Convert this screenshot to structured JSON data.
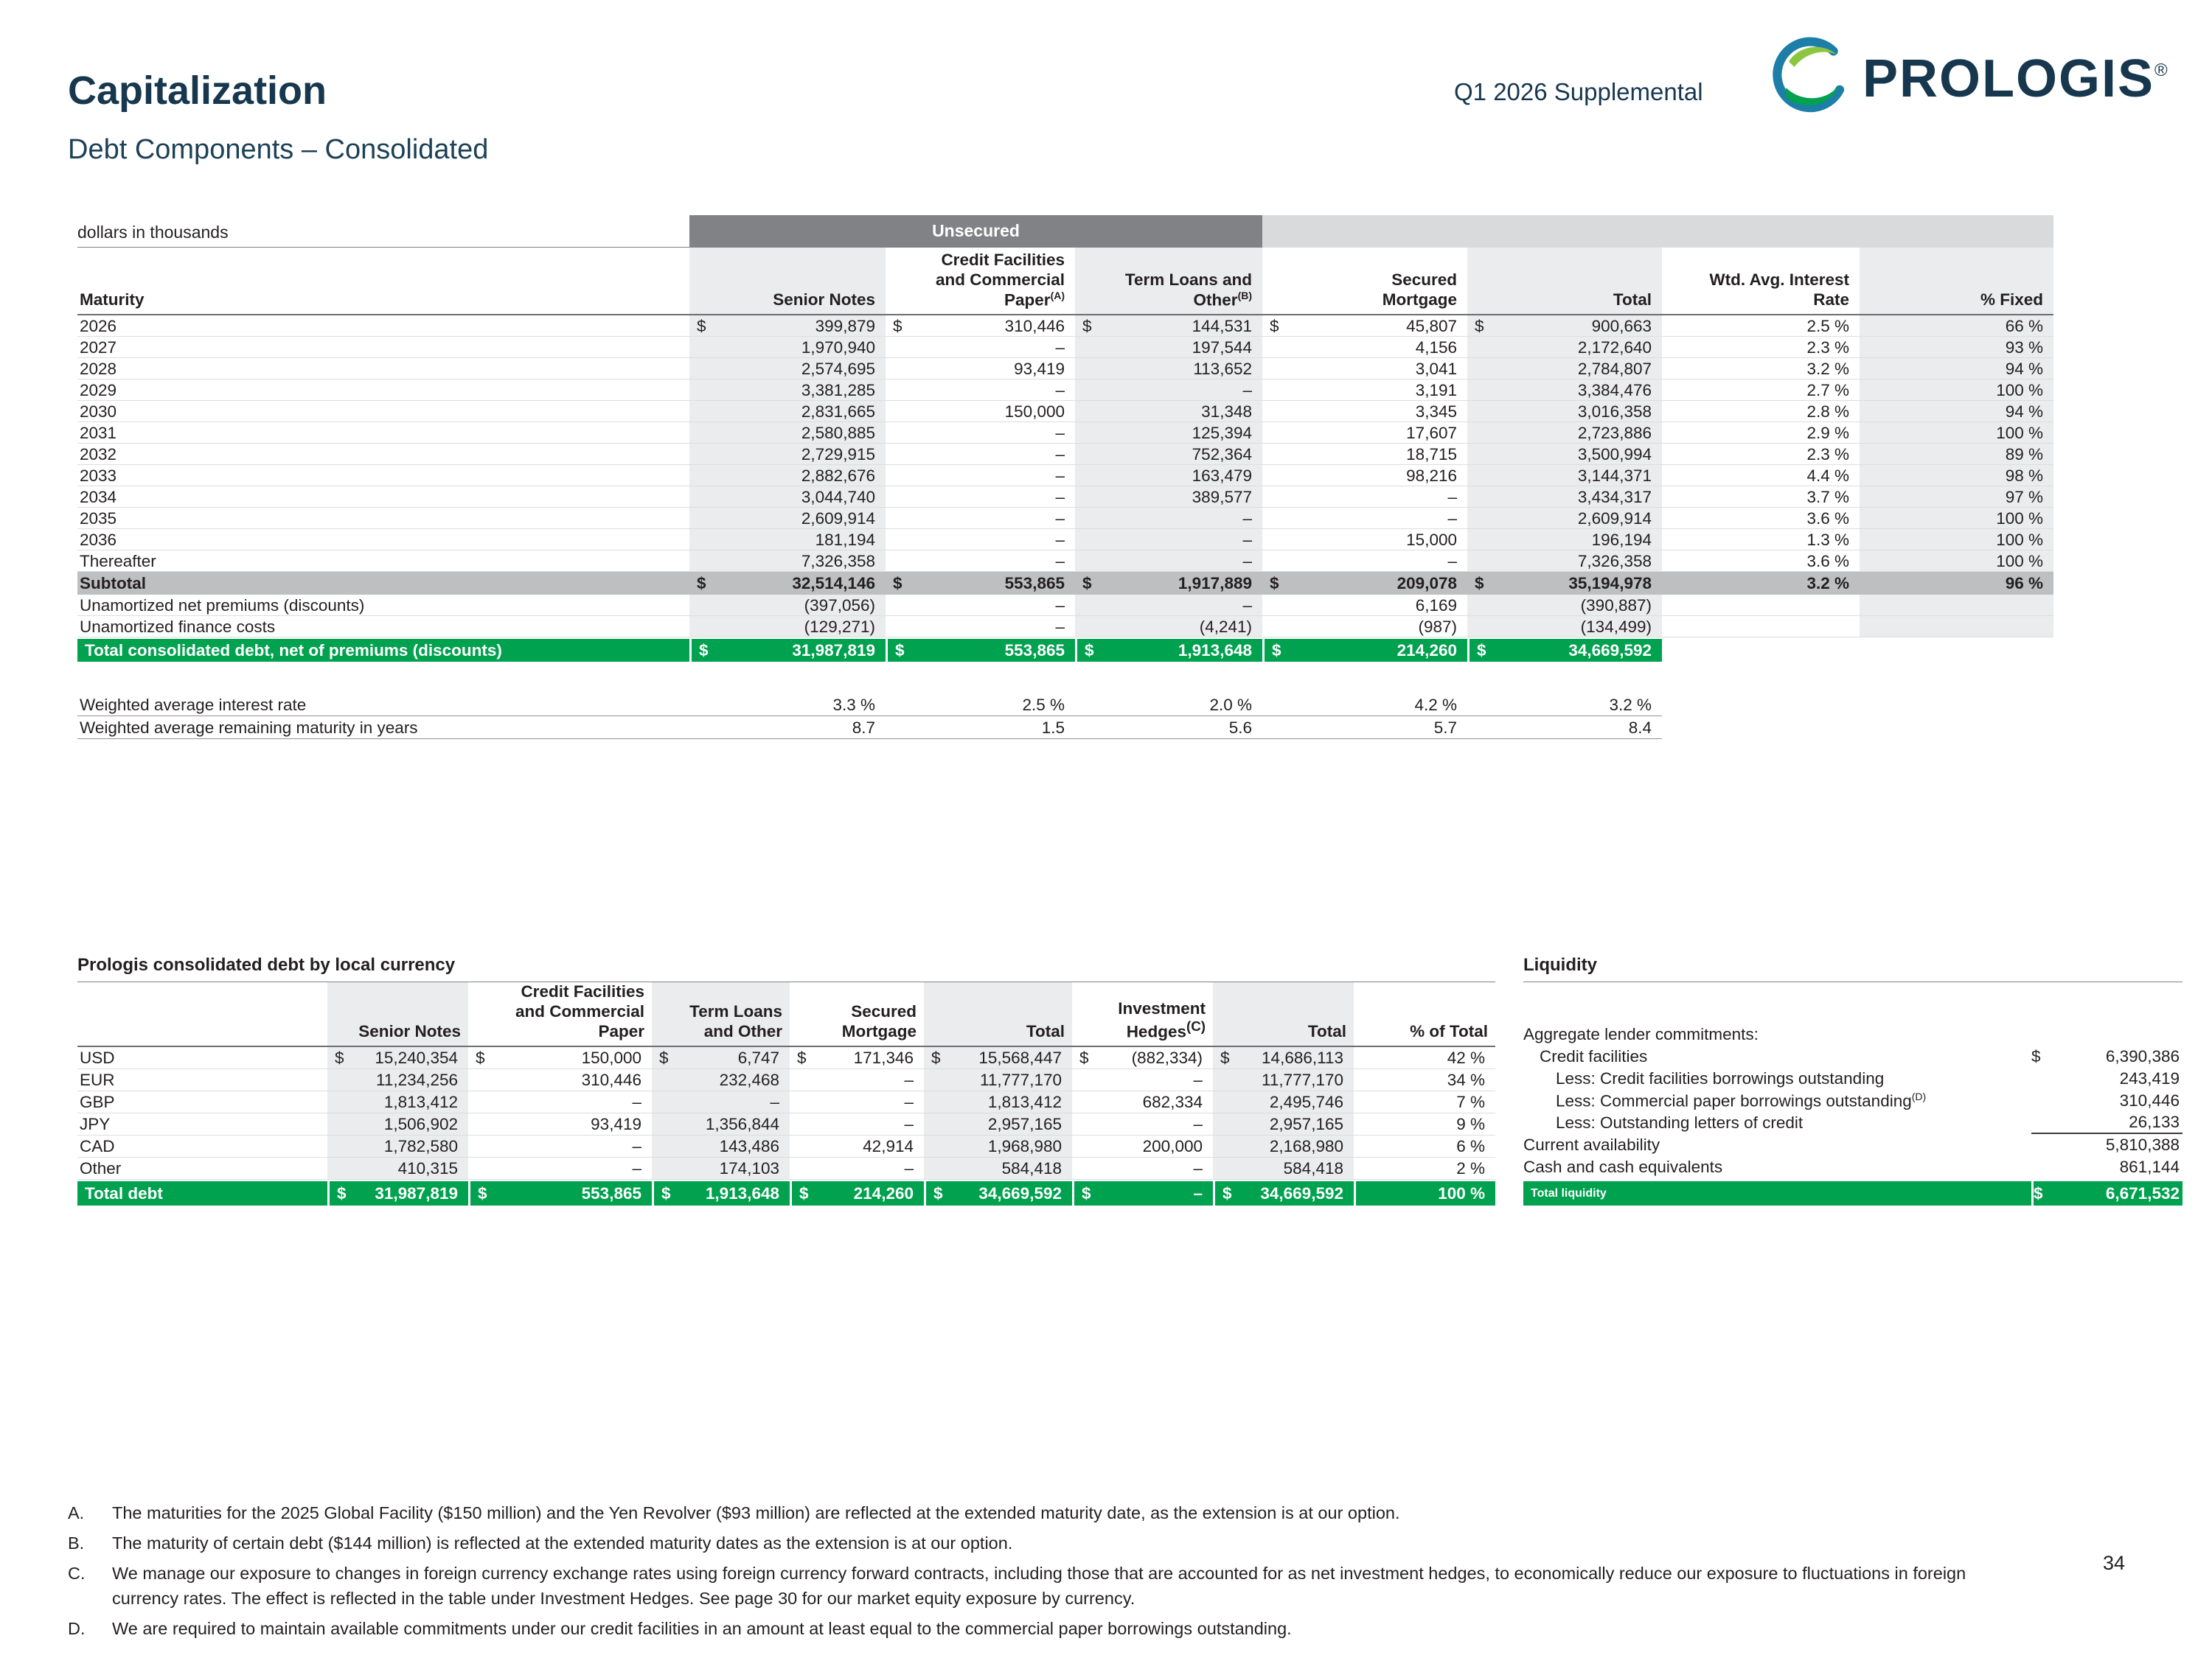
{
  "page": {
    "title": "Capitalization",
    "subtitle": "Debt Components – Consolidated",
    "supplemental_label": "Q1 2026 Supplemental",
    "page_number": "34",
    "brand": {
      "wordmark": "PROLOGIS",
      "registered": "®"
    },
    "colors": {
      "green": "#00a14f",
      "navy": "#17374e",
      "bar_gray": "#808285",
      "subtotal_gray": "#bdbfc1"
    }
  },
  "main_table": {
    "units_label": "dollars in thousands",
    "group_header": "Unsecured",
    "row_header": "Maturity",
    "columns": [
      "Senior Notes",
      "Credit Facilities<br>and Commercial<br>Paper<sup>(A)</sup>",
      "Term Loans and<br>Other<sup>(B)</sup>",
      "Secured<br>Mortgage",
      "Total",
      "Wtd. Avg. Interest<br>Rate",
      "% Fixed"
    ],
    "rows": [
      {
        "label": "2026",
        "cells": [
          "$|399,879",
          "$|310,446",
          "$|144,531",
          "$|45,807",
          "$|900,663",
          "2.5 %",
          "66 %"
        ]
      },
      {
        "label": "2027",
        "cells": [
          "1,970,940",
          "–",
          "197,544",
          "4,156",
          "2,172,640",
          "2.3 %",
          "93 %"
        ]
      },
      {
        "label": "2028",
        "cells": [
          "2,574,695",
          "93,419",
          "113,652",
          "3,041",
          "2,784,807",
          "3.2 %",
          "94 %"
        ]
      },
      {
        "label": "2029",
        "cells": [
          "3,381,285",
          "–",
          "–",
          "3,191",
          "3,384,476",
          "2.7 %",
          "100 %"
        ]
      },
      {
        "label": "2030",
        "cells": [
          "2,831,665",
          "150,000",
          "31,348",
          "3,345",
          "3,016,358",
          "2.8 %",
          "94 %"
        ]
      },
      {
        "label": "2031",
        "cells": [
          "2,580,885",
          "–",
          "125,394",
          "17,607",
          "2,723,886",
          "2.9 %",
          "100 %"
        ]
      },
      {
        "label": "2032",
        "cells": [
          "2,729,915",
          "–",
          "752,364",
          "18,715",
          "3,500,994",
          "2.3 %",
          "89 %"
        ]
      },
      {
        "label": "2033",
        "cells": [
          "2,882,676",
          "–",
          "163,479",
          "98,216",
          "3,144,371",
          "4.4 %",
          "98 %"
        ]
      },
      {
        "label": "2034",
        "cells": [
          "3,044,740",
          "–",
          "389,577",
          "–",
          "3,434,317",
          "3.7 %",
          "97 %"
        ]
      },
      {
        "label": "2035",
        "cells": [
          "2,609,914",
          "–",
          "–",
          "–",
          "2,609,914",
          "3.6 %",
          "100 %"
        ]
      },
      {
        "label": "2036",
        "cells": [
          "181,194",
          "–",
          "–",
          "15,000",
          "196,194",
          "1.3 %",
          "100 %"
        ]
      },
      {
        "label": "Thereafter",
        "cells": [
          "7,326,358",
          "–",
          "–",
          "–",
          "7,326,358",
          "3.6 %",
          "100 %"
        ]
      },
      {
        "label": "Subtotal",
        "style": "subtotal",
        "cells": [
          "$|32,514,146",
          "$|553,865",
          "$|1,917,889",
          "$|209,078",
          "$|35,194,978",
          "3.2 %",
          "96 %"
        ]
      },
      {
        "label": "Unamortized net premiums (discounts)",
        "cells": [
          "(397,056)",
          "–",
          "–",
          "6,169",
          "(390,887)",
          "",
          ""
        ]
      },
      {
        "label": "Unamortized finance costs",
        "cells": [
          "(129,271)",
          "–",
          "(4,241)",
          "(987)",
          "(134,499)",
          "",
          ""
        ]
      }
    ],
    "total_row": {
      "label": "Total consolidated debt, net of premiums (discounts)",
      "cells": [
        "$|31,987,819",
        "$|553,865",
        "$|1,913,648",
        "$|214,260",
        "$|34,669,592"
      ]
    },
    "weighted_rows": [
      {
        "label": "Weighted average interest rate",
        "values": [
          "3.3 %",
          "2.5 %",
          "2.0 %",
          "4.2 %",
          "3.2 %"
        ]
      },
      {
        "label": "Weighted average remaining maturity in years",
        "values": [
          "8.7",
          "1.5",
          "5.6",
          "5.7",
          "8.4"
        ]
      }
    ]
  },
  "currency_table": {
    "title": "Prologis consolidated debt by local currency",
    "columns": [
      "Senior Notes",
      "Credit Facilities<br>and Commercial<br>Paper",
      "Term Loans<br>and Other",
      "Secured<br>Mortgage",
      "Total",
      "Investment<br>Hedges<sup>(C)</sup>",
      "Total",
      "% of Total"
    ],
    "rows": [
      {
        "label": "USD",
        "cells": [
          "$|15,240,354",
          "$|150,000",
          "$|6,747",
          "$|171,346",
          "$|15,568,447",
          "$|(882,334)",
          "$|14,686,113",
          "42 %"
        ]
      },
      {
        "label": "EUR",
        "cells": [
          "11,234,256",
          "310,446",
          "232,468",
          "–",
          "11,777,170",
          "–",
          "11,777,170",
          "34 %"
        ]
      },
      {
        "label": "GBP",
        "cells": [
          "1,813,412",
          "–",
          "–",
          "–",
          "1,813,412",
          "682,334",
          "2,495,746",
          "7 %"
        ]
      },
      {
        "label": "JPY",
        "cells": [
          "1,506,902",
          "93,419",
          "1,356,844",
          "–",
          "2,957,165",
          "–",
          "2,957,165",
          "9 %"
        ]
      },
      {
        "label": "CAD",
        "cells": [
          "1,782,580",
          "–",
          "143,486",
          "42,914",
          "1,968,980",
          "200,000",
          "2,168,980",
          "6 %"
        ]
      },
      {
        "label": "Other",
        "cells": [
          "410,315",
          "–",
          "174,103",
          "–",
          "584,418",
          "–",
          "584,418",
          "2 %"
        ]
      }
    ],
    "total_row": {
      "label": "Total debt",
      "cells": [
        "$|31,987,819",
        "$|553,865",
        "$|1,913,648",
        "$|214,260",
        "$|34,669,592",
        "$|–",
        "$|34,669,592",
        "100 %"
      ]
    }
  },
  "liquidity": {
    "title": "Liquidity",
    "items": [
      {
        "label": "Aggregate lender commitments:",
        "value": "",
        "indent": 0
      },
      {
        "label": "Credit facilities",
        "value": "$|6,390,386",
        "indent": 1
      },
      {
        "label": "Less: Credit facilities borrowings outstanding",
        "value": "243,419",
        "indent": 2
      },
      {
        "label": "Less: Commercial paper borrowings outstanding<sup>(D)</sup>",
        "value": "310,446",
        "indent": 2
      },
      {
        "label": "Less: Outstanding letters of credit",
        "value": "26,133",
        "indent": 2,
        "rule_below": true
      },
      {
        "label": "Current availability",
        "value": "5,810,388",
        "indent": 0
      },
      {
        "label": "Cash and cash equivalents",
        "value": "861,144",
        "indent": 0
      }
    ],
    "total_row": {
      "label": "Total liquidity",
      "value": "$|6,671,532"
    }
  },
  "footnotes": [
    {
      "letter": "A.",
      "text": "The maturities for the 2025 Global Facility ($150 million) and the Yen Revolver ($93 million) are reflected at the extended maturity date, as the extension is at our option."
    },
    {
      "letter": "B.",
      "text": "The maturity of certain debt ($144 million) is reflected at the extended maturity dates as the extension is at our option."
    },
    {
      "letter": "C.",
      "text": "We manage our exposure to changes in foreign currency exchange rates using foreign currency forward contracts, including those that are accounted for as net investment hedges, to economically reduce our exposure to fluctuations in foreign currency rates. The effect is reflected in the table under Investment Hedges. See page 30 for our market equity exposure by currency."
    },
    {
      "letter": "D.",
      "text": "We are required to maintain available commitments under our credit facilities in an amount at least equal to the commercial paper borrowings outstanding."
    }
  ]
}
